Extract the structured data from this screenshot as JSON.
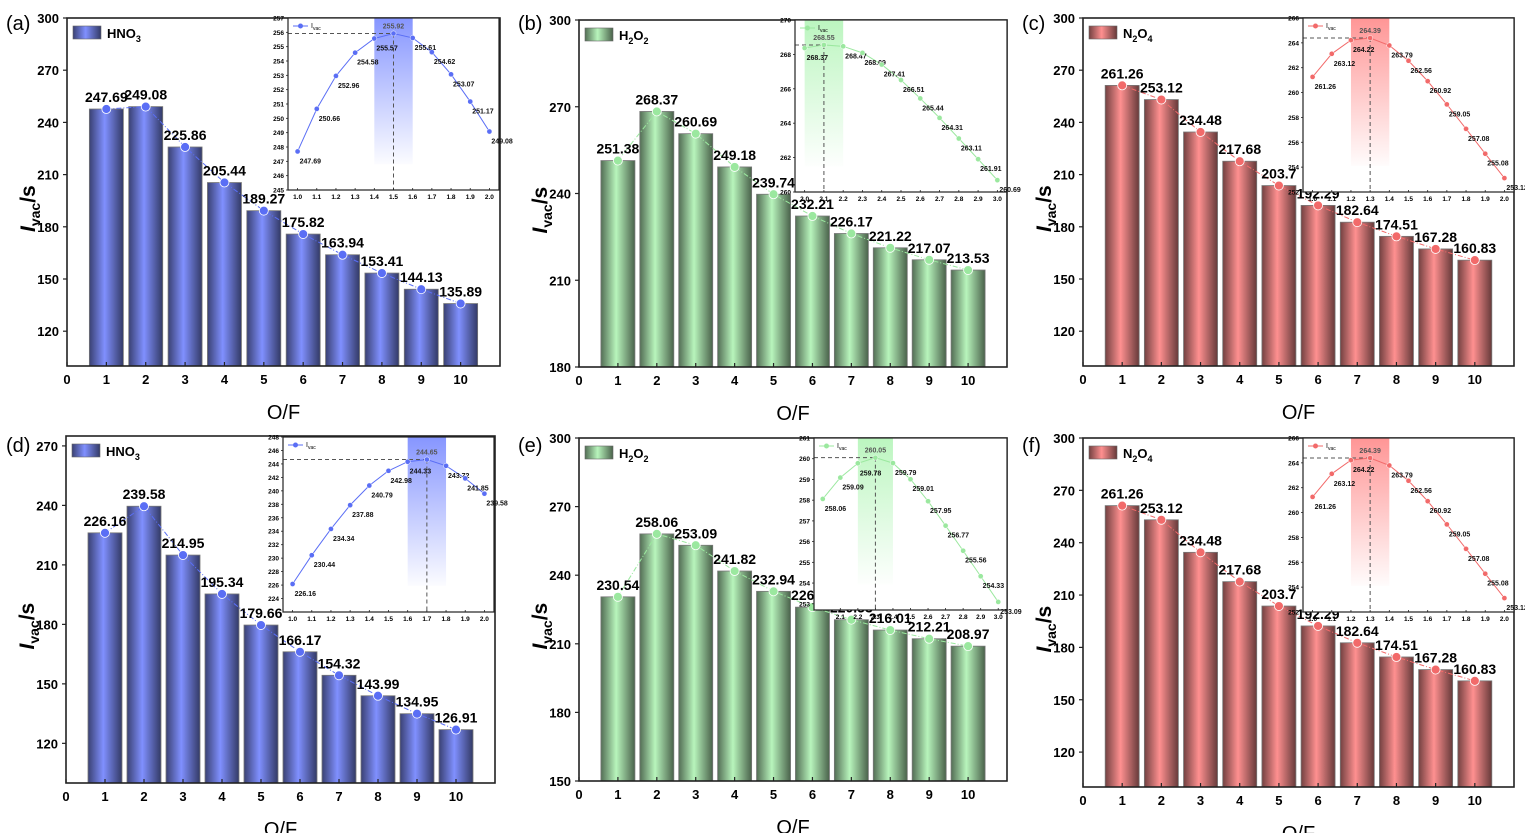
{
  "figure": {
    "y_label_main": "I",
    "y_label_sub": "vac",
    "y_label_unit": "/s",
    "x_label": "O/F",
    "inset_legend_main": "I",
    "inset_legend_sub": "vac"
  },
  "chart_data": [
    {
      "panel": "(a)",
      "type": "bar",
      "legend": {
        "main": "HNO",
        "sub": "3",
        "suffix": ""
      },
      "color": "#8090ff",
      "point_color": "#5a6ef5",
      "categories": [
        1,
        2,
        3,
        4,
        5,
        6,
        7,
        8,
        9,
        10
      ],
      "values": [
        247.69,
        249.08,
        225.86,
        205.44,
        189.27,
        175.82,
        163.94,
        153.41,
        144.13,
        135.89
      ],
      "labels": [
        "247.69",
        "249.08",
        "225.86",
        "205.44",
        "189.27",
        "175.82",
        "163.94",
        "153.41",
        "144.13",
        "135.89"
      ],
      "xlabel": "O/F",
      "ylabel": "Ivac/s",
      "ylim": [
        100,
        300
      ],
      "yticks": [
        120,
        150,
        180,
        210,
        240,
        270,
        300
      ],
      "xlim": [
        0,
        11
      ],
      "xticks": [
        0,
        1,
        2,
        3,
        4,
        5,
        6,
        7,
        8,
        9,
        10
      ],
      "inset": {
        "type": "line",
        "x": [
          1.0,
          1.1,
          1.2,
          1.3,
          1.4,
          1.5,
          1.6,
          1.7,
          1.8,
          1.9,
          2.0
        ],
        "y": [
          247.69,
          250.66,
          252.96,
          254.58,
          255.57,
          255.92,
          255.61,
          254.62,
          253.07,
          251.17,
          249.08
        ],
        "labels": [
          "247.69",
          "250.66",
          "252.96",
          "254.58",
          "255.57",
          "255.92",
          "255.61",
          "254.62",
          "253.07",
          "251.17",
          "249.08"
        ],
        "xlim": [
          0.95,
          2.05
        ],
        "ylim": [
          245,
          257
        ],
        "xticks": [
          "1.0",
          "1.1",
          "1.2",
          "1.3",
          "1.4",
          "1.5",
          "1.6",
          "1.7",
          "1.8",
          "1.9",
          "2.0"
        ],
        "yticks": [
          245,
          246,
          247,
          248,
          249,
          250,
          251,
          252,
          253,
          254,
          255,
          256,
          257
        ],
        "peak_x": 1.5,
        "peak_y": 255.92,
        "band": [
          1.4,
          1.6
        ]
      }
    },
    {
      "panel": "(b)",
      "type": "bar",
      "legend": {
        "main": "H",
        "sub": "2",
        "suffix": "O",
        "sub2": "2"
      },
      "color": "#b8f5bc",
      "point_color": "#9be89f",
      "categories": [
        1,
        2,
        3,
        4,
        5,
        6,
        7,
        8,
        9,
        10
      ],
      "values": [
        251.38,
        268.37,
        260.69,
        249.18,
        239.74,
        232.21,
        226.17,
        221.22,
        217.07,
        213.53
      ],
      "labels": [
        "251.38",
        "268.37",
        "260.69",
        "249.18",
        "239.74",
        "232.21",
        "226.17",
        "221.22",
        "217.07",
        "213.53"
      ],
      "xlabel": "O/F",
      "ylabel": "Ivac/s",
      "ylim": [
        180,
        300
      ],
      "yticks": [
        180,
        210,
        240,
        270,
        300
      ],
      "xlim": [
        0,
        11
      ],
      "xticks": [
        0,
        1,
        2,
        3,
        4,
        5,
        6,
        7,
        8,
        9,
        10
      ],
      "inset": {
        "type": "line",
        "x": [
          2.0,
          2.1,
          2.2,
          2.3,
          2.4,
          2.5,
          2.6,
          2.7,
          2.8,
          2.9,
          3.0
        ],
        "y": [
          268.37,
          268.55,
          268.47,
          268.09,
          267.41,
          266.51,
          265.44,
          264.31,
          263.11,
          261.91,
          260.69
        ],
        "labels": [
          "268.37",
          "268.55",
          "268.47",
          "268.09",
          "267.41",
          "266.51",
          "265.44",
          "264.31",
          "263.11",
          "261.91",
          "260.69"
        ],
        "xlim": [
          1.95,
          3.05
        ],
        "ylim": [
          260,
          270
        ],
        "xticks": [
          "2.0",
          "2.1",
          "2.2",
          "2.3",
          "2.4",
          "2.5",
          "2.6",
          "2.7",
          "2.8",
          "2.9",
          "3.0"
        ],
        "yticks": [
          260,
          262,
          264,
          266,
          268,
          270
        ],
        "peak_x": 2.1,
        "peak_y": 268.55,
        "band": [
          2.0,
          2.2
        ]
      }
    },
    {
      "panel": "(c)",
      "type": "bar",
      "legend": {
        "main": "N",
        "sub": "2",
        "suffix": "O",
        "sub2": "4"
      },
      "color": "#ff9090",
      "point_color": "#f26a6a",
      "categories": [
        1,
        2,
        3,
        4,
        5,
        6,
        7,
        8,
        9,
        10
      ],
      "values": [
        261.26,
        253.12,
        234.48,
        217.68,
        203.7,
        192.29,
        182.64,
        174.51,
        167.28,
        160.83
      ],
      "labels": [
        "261.26",
        "253.12",
        "234.48",
        "217.68",
        "203.7",
        "192.29",
        "182.64",
        "174.51",
        "167.28",
        "160.83"
      ],
      "xlabel": "O/F",
      "ylabel": "Ivac/s",
      "ylim": [
        100,
        300
      ],
      "yticks": [
        120,
        150,
        180,
        210,
        240,
        270,
        300
      ],
      "xlim": [
        0,
        11
      ],
      "xticks": [
        0,
        1,
        2,
        3,
        4,
        5,
        6,
        7,
        8,
        9,
        10
      ],
      "inset": {
        "type": "line",
        "x": [
          1.0,
          1.1,
          1.2,
          1.3,
          1.4,
          1.5,
          1.6,
          1.7,
          1.8,
          1.9,
          2.0
        ],
        "y": [
          261.26,
          263.12,
          264.22,
          264.39,
          263.79,
          262.56,
          260.92,
          259.05,
          257.08,
          255.08,
          253.12
        ],
        "labels": [
          "261.26",
          "263.12",
          "264.22",
          "264.39",
          "263.79",
          "262.56",
          "260.92",
          "259.05",
          "257.08",
          "255.08",
          "253.12"
        ],
        "xlim": [
          0.95,
          2.05
        ],
        "ylim": [
          252,
          266
        ],
        "xticks": [
          "1.0",
          "1.1",
          "1.2",
          "1.3",
          "1.4",
          "1.5",
          "1.6",
          "1.7",
          "1.8",
          "1.9",
          "2.0"
        ],
        "yticks": [
          252,
          254,
          256,
          258,
          260,
          262,
          264,
          266
        ],
        "peak_x": 1.3,
        "peak_y": 264.39,
        "band": [
          1.2,
          1.4
        ]
      }
    },
    {
      "panel": "(d)",
      "type": "bar",
      "legend": {
        "main": "HNO",
        "sub": "3",
        "suffix": ""
      },
      "color": "#8090ff",
      "point_color": "#5a6ef5",
      "categories": [
        1,
        2,
        3,
        4,
        5,
        6,
        7,
        8,
        9,
        10
      ],
      "values": [
        226.16,
        239.58,
        214.95,
        195.34,
        179.66,
        166.17,
        154.32,
        143.99,
        134.95,
        126.91
      ],
      "labels": [
        "226.16",
        "239.58",
        "214.95",
        "195.34",
        "179.66",
        "166.17",
        "154.32",
        "143.99",
        "134.95",
        "126.91"
      ],
      "xlabel": "O/F",
      "ylabel": "Ivac/s",
      "ylim": [
        100,
        275
      ],
      "yticks": [
        120,
        150,
        180,
        210,
        240,
        270
      ],
      "xlim": [
        0,
        11
      ],
      "xticks": [
        0,
        1,
        2,
        3,
        4,
        5,
        6,
        7,
        8,
        9,
        10
      ],
      "inset": {
        "type": "line",
        "x": [
          1.0,
          1.1,
          1.2,
          1.3,
          1.4,
          1.5,
          1.6,
          1.7,
          1.8,
          1.9,
          2.0
        ],
        "y": [
          226.16,
          230.44,
          234.34,
          237.88,
          240.79,
          242.98,
          244.33,
          244.65,
          243.72,
          241.85,
          239.58
        ],
        "labels": [
          "226.16",
          "230.44",
          "234.34",
          "237.88",
          "240.79",
          "242.98",
          "244.33",
          "244.65",
          "243.72",
          "241.85",
          "239.58"
        ],
        "xlim": [
          0.95,
          2.05
        ],
        "ylim": [
          222,
          248
        ],
        "xticks": [
          "1.0",
          "1.1",
          "1.2",
          "1.3",
          "1.4",
          "1.5",
          "1.6",
          "1.7",
          "1.8",
          "1.9",
          "2.0"
        ],
        "yticks": [
          224,
          226,
          228,
          230,
          232,
          234,
          236,
          238,
          240,
          242,
          244,
          246,
          248
        ],
        "peak_x": 1.7,
        "peak_y": 244.65,
        "band": [
          1.6,
          1.8
        ]
      }
    },
    {
      "panel": "(e)",
      "type": "bar",
      "legend": {
        "main": "H",
        "sub": "2",
        "suffix": "O",
        "sub2": "2"
      },
      "color": "#b8f5bc",
      "point_color": "#9be89f",
      "categories": [
        1,
        2,
        3,
        4,
        5,
        6,
        7,
        8,
        9,
        10
      ],
      "values": [
        230.54,
        258.06,
        253.09,
        241.82,
        232.94,
        226.03,
        220.53,
        216.01,
        212.21,
        208.97
      ],
      "labels": [
        "230.54",
        "258.06",
        "253.09",
        "241.82",
        "232.94",
        "226.03",
        "220.53",
        "216.01",
        "212.21",
        "208.97"
      ],
      "xlabel": "O/F",
      "ylabel": "Ivac/s",
      "ylim": [
        150,
        300
      ],
      "yticks": [
        150,
        180,
        210,
        240,
        270,
        300
      ],
      "xlim": [
        0,
        11
      ],
      "xticks": [
        0,
        1,
        2,
        3,
        4,
        5,
        6,
        7,
        8,
        9,
        10
      ],
      "inset": {
        "type": "line",
        "x": [
          2.0,
          2.1,
          2.2,
          2.3,
          2.4,
          2.5,
          2.6,
          2.7,
          2.8,
          2.9,
          3.0
        ],
        "y": [
          258.06,
          259.09,
          259.78,
          260.05,
          259.79,
          259.01,
          257.95,
          256.77,
          255.56,
          254.33,
          253.09
        ],
        "labels": [
          "258.06",
          "259.09",
          "259.78",
          "260.05",
          "259.79",
          "259.01",
          "257.95",
          "256.77",
          "255.56",
          "254.33",
          "253.09"
        ],
        "xlim": [
          1.95,
          3.05
        ],
        "ylim": [
          252.7,
          261
        ],
        "xticks": [
          "2.1",
          "2.2",
          "2.3",
          "2.4",
          "2.5",
          "2.6",
          "2.7",
          "2.8",
          "2.9",
          "3.0"
        ],
        "yticks": [
          253,
          254,
          255,
          256,
          257,
          258,
          259,
          260,
          261
        ],
        "peak_x": 2.3,
        "peak_y": 260.05,
        "band": [
          2.2,
          2.4
        ]
      }
    },
    {
      "panel": "(f)",
      "type": "bar",
      "legend": {
        "main": "N",
        "sub": "2",
        "suffix": "O",
        "sub2": "4"
      },
      "color": "#ff9090",
      "point_color": "#f26a6a",
      "categories": [
        1,
        2,
        3,
        4,
        5,
        6,
        7,
        8,
        9,
        10
      ],
      "values": [
        261.26,
        253.12,
        234.48,
        217.68,
        203.7,
        192.29,
        182.64,
        174.51,
        167.28,
        160.83
      ],
      "labels": [
        "261.26",
        "253.12",
        "234.48",
        "217.68",
        "203.7",
        "192.29",
        "182.64",
        "174.51",
        "167.28",
        "160.83"
      ],
      "xlabel": "O/F",
      "ylabel": "Ivac/s",
      "ylim": [
        100,
        300
      ],
      "yticks": [
        120,
        150,
        180,
        210,
        240,
        270,
        300
      ],
      "xlim": [
        0,
        11
      ],
      "xticks": [
        0,
        1,
        2,
        3,
        4,
        5,
        6,
        7,
        8,
        9,
        10
      ],
      "inset": {
        "type": "line",
        "x": [
          1.0,
          1.1,
          1.2,
          1.3,
          1.4,
          1.5,
          1.6,
          1.7,
          1.8,
          1.9,
          2.0
        ],
        "y": [
          261.26,
          263.12,
          264.22,
          264.39,
          263.79,
          262.56,
          260.92,
          259.05,
          257.08,
          255.08,
          253.12
        ],
        "labels": [
          "261.26",
          "263.12",
          "264.22",
          "264.39",
          "263.79",
          "262.56",
          "260.92",
          "259.05",
          "257.08",
          "255.08",
          "253.12"
        ],
        "xlim": [
          0.95,
          2.05
        ],
        "ylim": [
          252,
          266
        ],
        "xticks": [
          "1.0",
          "1.1",
          "1.2",
          "1.3",
          "1.4",
          "1.5",
          "1.6",
          "1.7",
          "1.8",
          "1.9",
          "2.0"
        ],
        "yticks": [
          252,
          254,
          256,
          258,
          260,
          262,
          264,
          266
        ],
        "peak_x": 1.3,
        "peak_y": 264.39,
        "band": [
          1.2,
          1.4
        ]
      }
    }
  ]
}
